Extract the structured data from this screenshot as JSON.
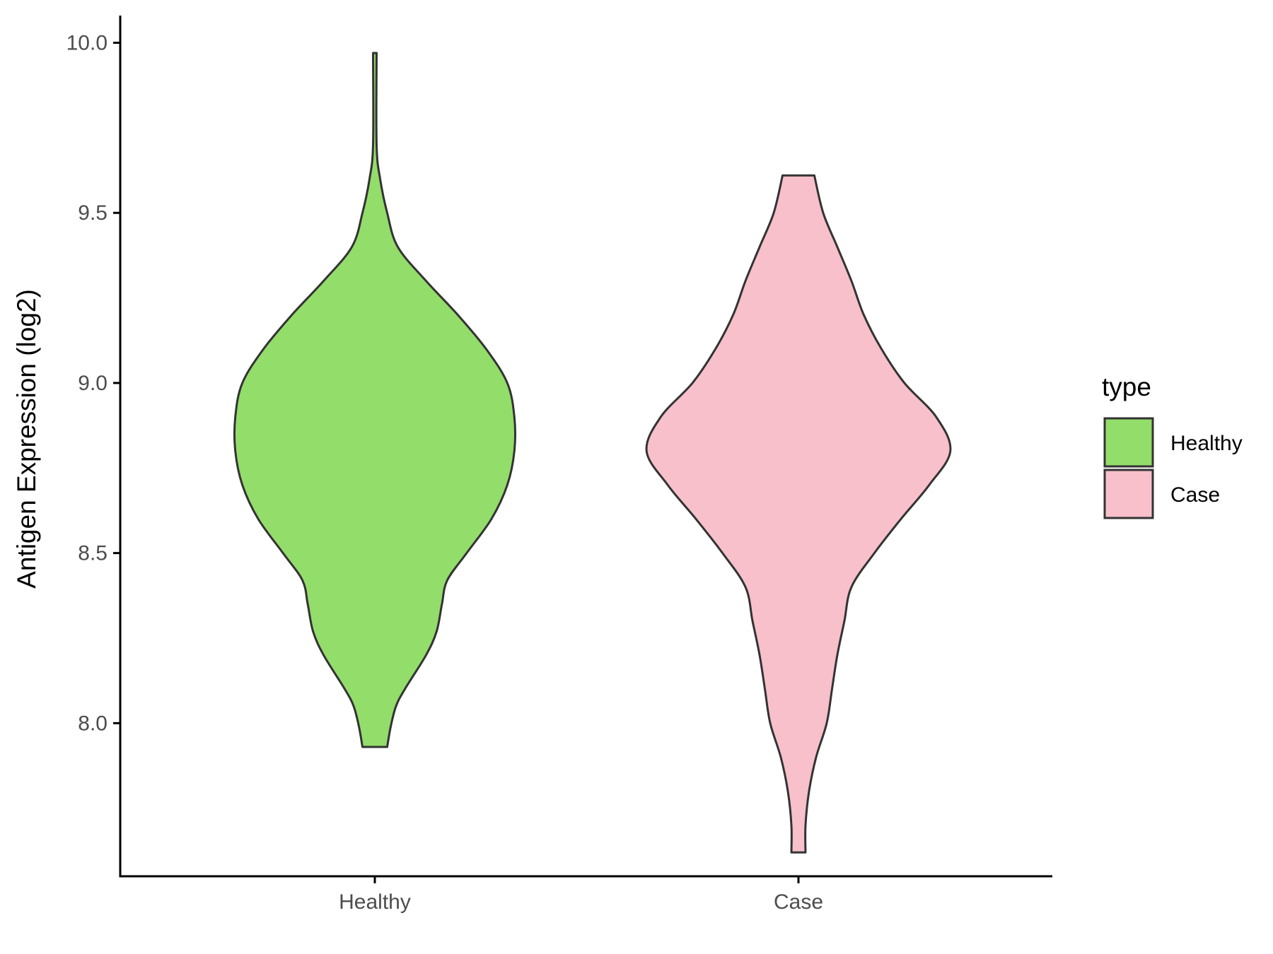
{
  "chart_data": {
    "type": "violin",
    "title": "",
    "xlabel": "",
    "ylabel": "Antigen Expression (log2)",
    "ylim": [
      7.55,
      10.08
    ],
    "yticks": [
      "8.0",
      "8.5",
      "9.0",
      "9.5",
      "10.0"
    ],
    "categories": [
      "Healthy",
      "Case"
    ],
    "grid": false,
    "legend": {
      "title": "type",
      "position": "right",
      "entries": [
        {
          "label": "Healthy",
          "color": "#93DD6A"
        },
        {
          "label": "Case",
          "color": "#F7C0CB"
        }
      ]
    },
    "series": [
      {
        "category": "Healthy",
        "color": "#93DD6A",
        "min": 7.93,
        "max": 9.97,
        "density_profile": [
          [
            7.93,
            0.07
          ],
          [
            7.99,
            0.09
          ],
          [
            8.05,
            0.12
          ],
          [
            8.1,
            0.17
          ],
          [
            8.2,
            0.29
          ],
          [
            8.27,
            0.35
          ],
          [
            8.35,
            0.38
          ],
          [
            8.42,
            0.41
          ],
          [
            8.5,
            0.52
          ],
          [
            8.6,
            0.66
          ],
          [
            8.7,
            0.75
          ],
          [
            8.8,
            0.79
          ],
          [
            8.9,
            0.79
          ],
          [
            9.0,
            0.75
          ],
          [
            9.1,
            0.63
          ],
          [
            9.2,
            0.47
          ],
          [
            9.3,
            0.29
          ],
          [
            9.4,
            0.13
          ],
          [
            9.5,
            0.07
          ],
          [
            9.6,
            0.03
          ],
          [
            9.7,
            0.01
          ],
          [
            9.97,
            0.01
          ]
        ]
      },
      {
        "category": "Case",
        "color": "#F7C0CB",
        "min": 7.62,
        "max": 9.61,
        "density_profile": [
          [
            7.62,
            0.04
          ],
          [
            7.7,
            0.04
          ],
          [
            7.8,
            0.06
          ],
          [
            7.9,
            0.1
          ],
          [
            8.0,
            0.16
          ],
          [
            8.1,
            0.19
          ],
          [
            8.2,
            0.22
          ],
          [
            8.3,
            0.26
          ],
          [
            8.4,
            0.3
          ],
          [
            8.5,
            0.43
          ],
          [
            8.6,
            0.58
          ],
          [
            8.7,
            0.74
          ],
          [
            8.8,
            0.86
          ],
          [
            8.9,
            0.78
          ],
          [
            9.0,
            0.6
          ],
          [
            9.1,
            0.47
          ],
          [
            9.2,
            0.37
          ],
          [
            9.3,
            0.3
          ],
          [
            9.4,
            0.22
          ],
          [
            9.5,
            0.14
          ],
          [
            9.61,
            0.09
          ]
        ]
      }
    ]
  }
}
